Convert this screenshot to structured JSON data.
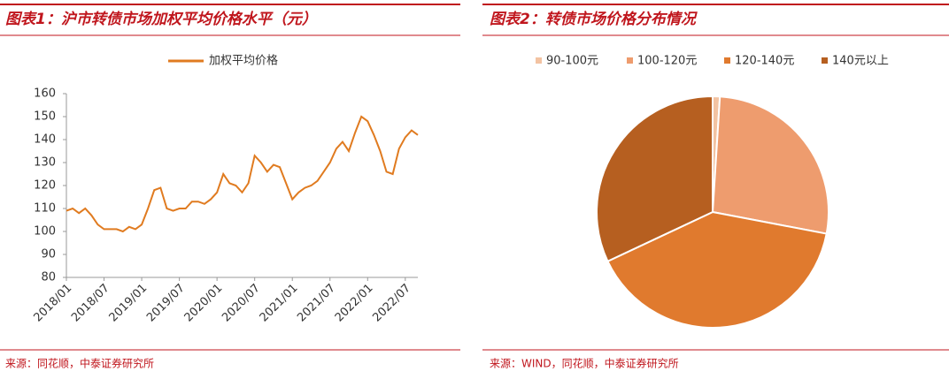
{
  "chart_data": [
    {
      "type": "line",
      "title": "图表1：沪市转债市场加权平均价格水平（元）",
      "source": "来源：同花顺，中泰证券研究所",
      "x": [
        "2018/01",
        "2018/02",
        "2018/03",
        "2018/04",
        "2018/05",
        "2018/06",
        "2018/07",
        "2018/08",
        "2018/09",
        "2018/10",
        "2018/11",
        "2018/12",
        "2019/01",
        "2019/02",
        "2019/03",
        "2019/04",
        "2019/05",
        "2019/06",
        "2019/07",
        "2019/08",
        "2019/09",
        "2019/10",
        "2019/11",
        "2019/12",
        "2020/01",
        "2020/02",
        "2020/03",
        "2020/04",
        "2020/05",
        "2020/06",
        "2020/07",
        "2020/08",
        "2020/09",
        "2020/10",
        "2020/11",
        "2020/12",
        "2021/01",
        "2021/02",
        "2021/03",
        "2021/04",
        "2021/05",
        "2021/06",
        "2021/07",
        "2021/08",
        "2021/09",
        "2021/10",
        "2021/11",
        "2021/12",
        "2022/01",
        "2022/02",
        "2022/03",
        "2022/04",
        "2022/05",
        "2022/06",
        "2022/07",
        "2022/08",
        "2022/09"
      ],
      "series": [
        {
          "name": "加权平均价格",
          "color": "#e07b20",
          "values": [
            109,
            110,
            108,
            110,
            107,
            103,
            101,
            101,
            101,
            100,
            102,
            101,
            103,
            110,
            118,
            119,
            110,
            109,
            110,
            110,
            113,
            113,
            112,
            114,
            117,
            125,
            121,
            120,
            117,
            121,
            133,
            130,
            126,
            129,
            128,
            121,
            114,
            117,
            119,
            120,
            122,
            126,
            130,
            136,
            139,
            135,
            143,
            150,
            148,
            142,
            135,
            126,
            125,
            136,
            141,
            144,
            142
          ]
        }
      ],
      "xticks": [
        "2018/01",
        "2018/07",
        "2019/01",
        "2019/07",
        "2020/01",
        "2020/07",
        "2021/01",
        "2021/07",
        "2022/01",
        "2022/07"
      ],
      "ylim": [
        80,
        160
      ],
      "yticks": [
        80,
        90,
        100,
        110,
        120,
        130,
        140,
        150,
        160
      ],
      "grid": false,
      "legend": "top"
    },
    {
      "type": "pie",
      "title": "图表2：转债市场价格分布情况",
      "source": "来源：WIND，同花顺，中泰证券研究所",
      "categories": [
        "90-100元",
        "100-120元",
        "120-140元",
        "140元以上"
      ],
      "values": [
        1,
        27,
        40,
        32
      ],
      "colors": [
        "#f3c3a2",
        "#ee9c6e",
        "#e07a2e",
        "#b65f20"
      ],
      "legend": "top"
    }
  ]
}
